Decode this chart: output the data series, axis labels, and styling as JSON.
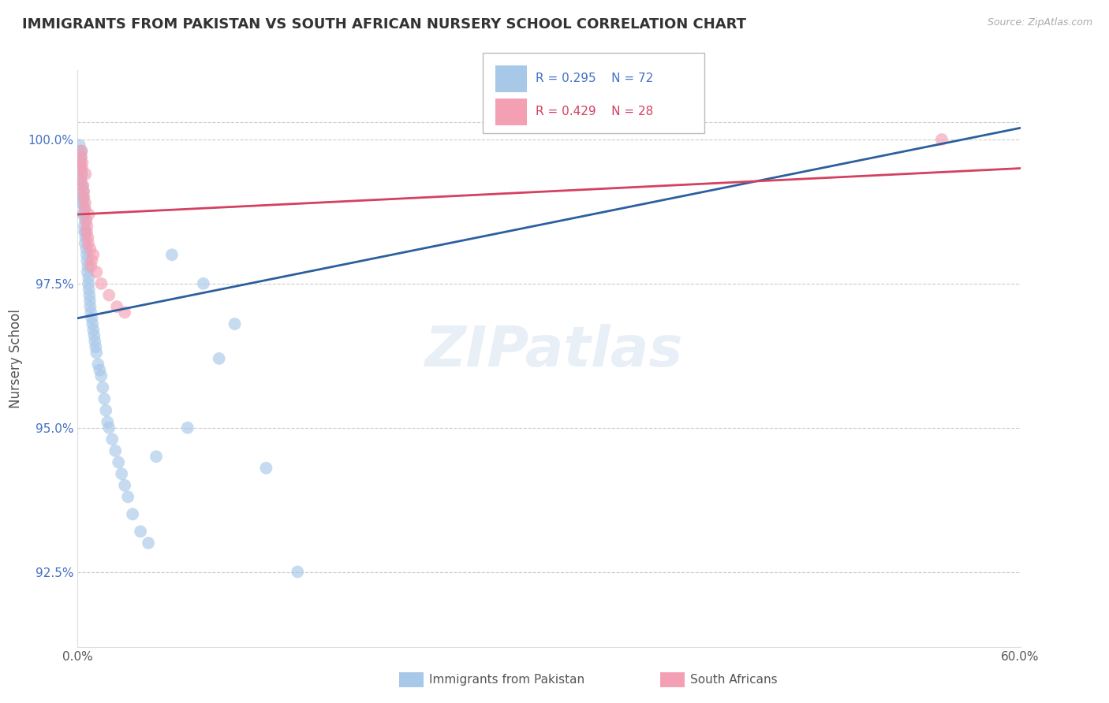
{
  "title": "IMMIGRANTS FROM PAKISTAN VS SOUTH AFRICAN NURSERY SCHOOL CORRELATION CHART",
  "source": "Source: ZipAtlas.com",
  "ylabel": "Nursery School",
  "xlim": [
    0.0,
    60.0
  ],
  "ylim": [
    91.2,
    101.2
  ],
  "yticks": [
    92.5,
    95.0,
    97.5,
    100.0
  ],
  "ytick_labels": [
    "92.5%",
    "95.0%",
    "97.5%",
    "100.0%"
  ],
  "xticks": [
    0.0,
    60.0
  ],
  "xtick_labels": [
    "0.0%",
    "60.0%"
  ],
  "legend_r_blue": "R = 0.295",
  "legend_n_blue": "N = 72",
  "legend_r_pink": "R = 0.429",
  "legend_n_pink": "N = 28",
  "blue_color": "#a8c8e8",
  "pink_color": "#f4a0b4",
  "blue_line_color": "#2c5f9e",
  "pink_line_color": "#d44060",
  "background_color": "#ffffff",
  "top_gridline_y": 100.3,
  "blue_line_x0": 0.0,
  "blue_line_y0": 96.9,
  "blue_line_x1": 60.0,
  "blue_line_y1": 100.2,
  "pink_line_x0": 0.0,
  "pink_line_y0": 98.7,
  "pink_line_x1": 60.0,
  "pink_line_y1": 99.5,
  "blue_scatter_x": [
    0.15,
    0.18,
    0.2,
    0.22,
    0.25,
    0.28,
    0.3,
    0.32,
    0.35,
    0.38,
    0.4,
    0.42,
    0.45,
    0.48,
    0.5,
    0.52,
    0.55,
    0.58,
    0.6,
    0.62,
    0.65,
    0.68,
    0.7,
    0.72,
    0.75,
    0.78,
    0.8,
    0.85,
    0.9,
    0.95,
    1.0,
    1.05,
    1.1,
    1.15,
    1.2,
    1.3,
    1.4,
    1.5,
    1.6,
    1.7,
    1.8,
    1.9,
    2.0,
    2.2,
    2.4,
    2.6,
    2.8,
    3.0,
    3.2,
    3.5,
    4.0,
    4.5,
    5.0,
    6.0,
    7.0,
    8.0,
    9.0,
    10.0,
    12.0,
    14.0,
    0.1,
    0.12,
    0.14,
    0.16,
    0.19,
    0.21,
    0.24,
    0.27,
    0.33,
    0.36,
    0.43,
    0.47
  ],
  "blue_scatter_y": [
    99.5,
    99.6,
    99.3,
    99.7,
    99.8,
    99.4,
    99.2,
    99.0,
    98.9,
    99.1,
    98.7,
    98.5,
    98.8,
    98.6,
    98.3,
    98.4,
    98.1,
    98.0,
    97.9,
    97.7,
    97.8,
    97.5,
    97.6,
    97.4,
    97.3,
    97.2,
    97.1,
    97.0,
    96.9,
    96.8,
    96.7,
    96.6,
    96.5,
    96.4,
    96.3,
    96.1,
    96.0,
    95.9,
    95.7,
    95.5,
    95.3,
    95.1,
    95.0,
    94.8,
    94.6,
    94.4,
    94.2,
    94.0,
    93.8,
    93.5,
    93.2,
    93.0,
    94.5,
    98.0,
    95.0,
    97.5,
    96.2,
    96.8,
    94.3,
    92.5,
    99.8,
    99.9,
    99.6,
    99.5,
    99.7,
    99.4,
    99.2,
    98.9,
    99.0,
    98.7,
    98.4,
    98.2
  ],
  "pink_scatter_x": [
    0.15,
    0.2,
    0.25,
    0.3,
    0.35,
    0.4,
    0.45,
    0.5,
    0.55,
    0.6,
    0.65,
    0.7,
    0.8,
    0.9,
    1.0,
    1.2,
    1.5,
    2.0,
    2.5,
    3.0,
    0.22,
    0.28,
    0.38,
    0.48,
    0.58,
    0.68,
    0.85,
    55.0
  ],
  "pink_scatter_y": [
    99.5,
    99.3,
    99.8,
    99.6,
    99.2,
    99.0,
    98.8,
    99.4,
    98.6,
    98.5,
    98.3,
    98.7,
    98.1,
    97.9,
    98.0,
    97.7,
    97.5,
    97.3,
    97.1,
    97.0,
    99.7,
    99.5,
    99.1,
    98.9,
    98.4,
    98.2,
    97.8,
    100.0
  ]
}
